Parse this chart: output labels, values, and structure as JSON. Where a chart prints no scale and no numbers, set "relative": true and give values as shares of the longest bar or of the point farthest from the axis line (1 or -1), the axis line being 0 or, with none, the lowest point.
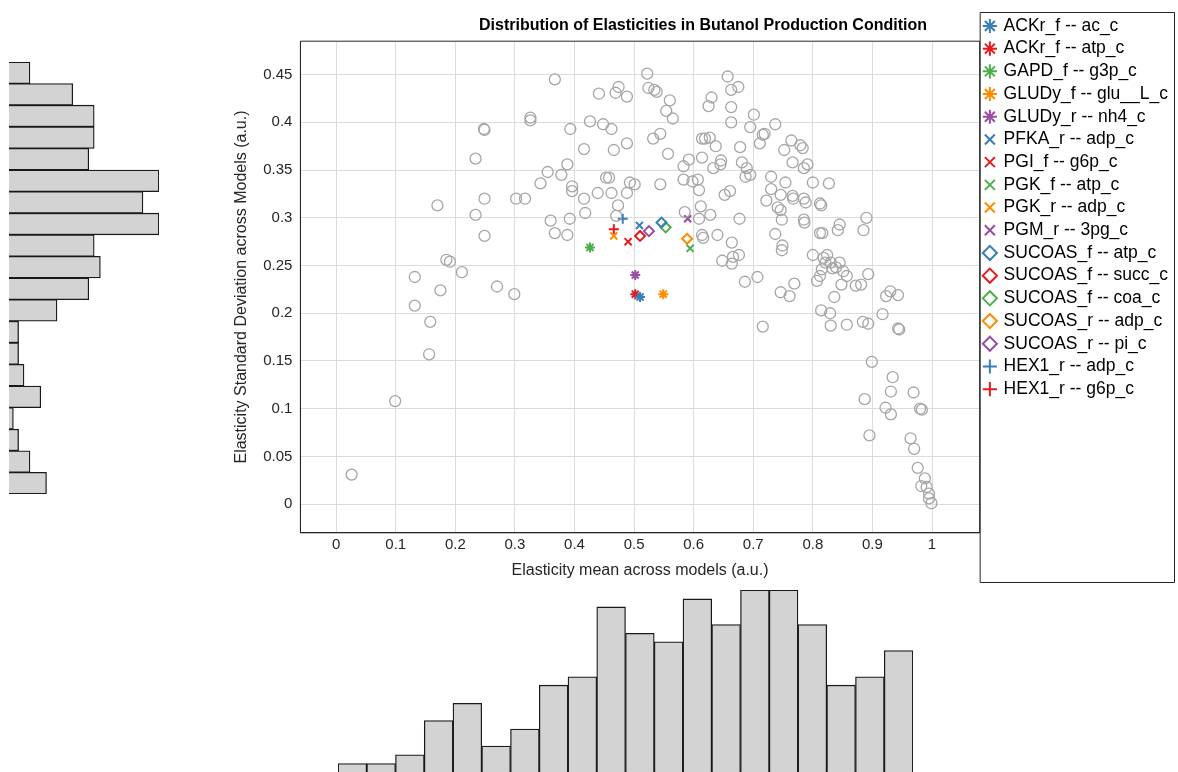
{
  "chart_data": [
    {
      "type": "scatter",
      "title": "Distribution of Elasticities in Butanol Production Condition",
      "xlabel": "Elasticity mean across models (a.u.)",
      "ylabel": "Elasticity Standard Deviation across Models (a.u.)",
      "xlim": [
        -0.06,
        1.08
      ],
      "ylim": [
        -0.03,
        0.485
      ],
      "xticks": [
        0,
        0.1,
        0.2,
        0.3,
        0.4,
        0.5,
        0.6,
        0.7,
        0.8,
        0.9,
        1
      ],
      "yticks": [
        0,
        0.05,
        0.1,
        0.15,
        0.2,
        0.25,
        0.3,
        0.35,
        0.4,
        0.45
      ],
      "grid": true,
      "legend": "top right",
      "series": [
        {
          "color": "#a6a6a6",
          "marker": "circle",
          "x": [
            0.367,
            0.441,
            0.474,
            0.469,
            0.488,
            0.326,
            0.326,
            0.248,
            0.249,
            0.393,
            0.426,
            0.448,
            0.462,
            0.416,
            0.466,
            0.488,
            0.234,
            0.355,
            0.388,
            0.378,
            0.343,
            0.396,
            0.396,
            0.453,
            0.458,
            0.493,
            0.501,
            0.439,
            0.462,
            0.488,
            0.416,
            0.249,
            0.302,
            0.317,
            0.17,
            0.473,
            0.234,
            0.47,
            0.418,
            0.36,
            0.392,
            0.367,
            0.388,
            0.249,
            0.185,
            0.191,
            0.211,
            0.132,
            0.27,
            0.299,
            0.175,
            0.132,
            0.158,
            0.156,
            0.099,
            0.026,
            0.522,
            0.524,
            0.534,
            0.538,
            0.56,
            0.554,
            0.565,
            0.544,
            0.532,
            0.557,
            0.657,
            0.663,
            0.675,
            0.63,
            0.625,
            0.663,
            0.663,
            0.701,
            0.695,
            0.737,
            0.619,
            0.614,
            0.627,
            0.637,
            0.716,
            0.719,
            0.711,
            0.614,
            0.592,
            0.583,
            0.646,
            0.645,
            0.633,
            0.678,
            0.681,
            0.689,
            0.687,
            0.695,
            0.764,
            0.752,
            0.779,
            0.783,
            0.766,
            0.785,
            0.791,
            0.583,
            0.598,
            0.607,
            0.609,
            0.544,
            0.73,
            0.73,
            0.754,
            0.746,
            0.741,
            0.746,
            0.748,
            0.722,
            0.8,
            0.827,
            0.766,
            0.767,
            0.785,
            0.788,
            0.812,
            0.814,
            0.652,
            0.661,
            0.612,
            0.628,
            0.585,
            0.609,
            0.677,
            0.785,
            0.786,
            0.89,
            0.845,
            0.842,
            0.885,
            0.737,
            0.749,
            0.748,
            0.812,
            0.816,
            0.614,
            0.616,
            0.64,
            0.664,
            0.666,
            0.676,
            0.648,
            0.664,
            0.8,
            0.818,
            0.824,
            0.821,
            0.83,
            0.839,
            0.845,
            0.851,
            0.857,
            0.833,
            0.815,
            0.893,
            0.881,
            0.872,
            0.848,
            0.807,
            0.812,
            0.686,
            0.707,
            0.746,
            0.761,
            0.769,
            0.836,
            0.923,
            0.93,
            0.943,
            0.814,
            0.829,
            0.83,
            0.857,
            0.884,
            0.893,
            0.917,
            0.943,
            0.945,
            0.716,
            0.899,
            0.934,
            0.931,
            0.922,
            0.931,
            0.887,
            0.969,
            0.98,
            0.983,
            0.895,
            0.964,
            0.97,
            0.976,
            0.988,
            0.982,
            0.991,
            0.995,
            0.995,
            0.999
          ],
          "values": [
            0.445,
            0.43,
            0.437,
            0.431,
            0.427,
            0.405,
            0.402,
            0.393,
            0.392,
            0.393,
            0.401,
            0.398,
            0.393,
            0.372,
            0.371,
            0.378,
            0.362,
            0.348,
            0.356,
            0.345,
            0.336,
            0.333,
            0.328,
            0.342,
            0.342,
            0.337,
            0.335,
            0.326,
            0.326,
            0.326,
            0.32,
            0.32,
            0.32,
            0.32,
            0.313,
            0.313,
            0.303,
            0.302,
            0.305,
            0.297,
            0.299,
            0.284,
            0.282,
            0.281,
            0.256,
            0.254,
            0.243,
            0.238,
            0.228,
            0.22,
            0.224,
            0.208,
            0.191,
            0.157,
            0.108,
            0.031,
            0.451,
            0.436,
            0.434,
            0.432,
            0.423,
            0.412,
            0.404,
            0.388,
            0.383,
            0.367,
            0.448,
            0.434,
            0.437,
            0.426,
            0.417,
            0.416,
            0.4,
            0.408,
            0.395,
            0.398,
            0.383,
            0.383,
            0.384,
            0.375,
            0.387,
            0.388,
            0.378,
            0.363,
            0.361,
            0.354,
            0.36,
            0.356,
            0.352,
            0.374,
            0.358,
            0.352,
            0.343,
            0.345,
            0.381,
            0.371,
            0.376,
            0.373,
            0.358,
            0.352,
            0.356,
            0.34,
            0.338,
            0.34,
            0.329,
            0.335,
            0.343,
            0.33,
            0.337,
            0.324,
            0.311,
            0.308,
            0.298,
            0.318,
            0.337,
            0.336,
            0.323,
            0.32,
            0.32,
            0.316,
            0.315,
            0.313,
            0.324,
            0.328,
            0.312,
            0.303,
            0.306,
            0.299,
            0.299,
            0.298,
            0.295,
            0.3,
            0.293,
            0.287,
            0.287,
            0.283,
            0.271,
            0.266,
            0.284,
            0.284,
            0.282,
            0.279,
            0.282,
            0.274,
            0.259,
            0.261,
            0.255,
            0.252,
            0.261,
            0.258,
            0.261,
            0.253,
            0.253,
            0.248,
            0.253,
            0.244,
            0.239,
            0.247,
            0.246,
            0.241,
            0.23,
            0.229,
            0.23,
            0.234,
            0.239,
            0.233,
            0.238,
            0.222,
            0.218,
            0.231,
            0.217,
            0.218,
            0.223,
            0.219,
            0.203,
            0.2,
            0.187,
            0.188,
            0.191,
            0.189,
            0.199,
            0.184,
            0.183,
            0.186,
            0.149,
            0.133,
            0.118,
            0.101,
            0.094,
            0.11,
            0.117,
            0.1,
            0.099,
            0.072,
            0.069,
            0.058,
            0.038,
            0.027,
            0.019,
            0.018,
            0.011,
            0.006,
            0.001
          ]
        },
        {
          "name": "ACKr_f -- ac_c",
          "color": "#377eb8",
          "marker": "cross",
          "x": [
            0.51
          ],
          "values": [
            0.217
          ]
        },
        {
          "name": "ACKr_f -- atp_c",
          "color": "#e41a1c",
          "marker": "cross",
          "x": [
            0.502
          ],
          "values": [
            0.22
          ]
        },
        {
          "name": "GAPD_f -- g3p_c",
          "color": "#4daf4a",
          "marker": "cross",
          "x": [
            0.426
          ],
          "values": [
            0.269
          ]
        },
        {
          "name": "GLUDy_f -- glu__L_c",
          "color": "#ff8c00",
          "marker": "cross",
          "x": [
            0.549
          ],
          "values": [
            0.22
          ]
        },
        {
          "name": "GLUDy_r -- nh4_c",
          "color": "#984ea3",
          "marker": "cross",
          "x": [
            0.502
          ],
          "values": [
            0.24
          ]
        },
        {
          "name": "PFKA_r -- adp_c",
          "color": "#377eb8",
          "marker": "x",
          "x": [
            0.509
          ],
          "values": [
            0.292
          ]
        },
        {
          "name": "PGI_f -- g6p_c",
          "color": "#e41a1c",
          "marker": "x",
          "x": [
            0.49
          ],
          "values": [
            0.275
          ]
        },
        {
          "name": "PGK_f -- atp_c",
          "color": "#4daf4a",
          "marker": "x",
          "x": [
            0.594
          ],
          "values": [
            0.268
          ]
        },
        {
          "name": "PGK_r -- adp_c",
          "color": "#ff8c00",
          "marker": "x",
          "x": [
            0.466
          ],
          "values": [
            0.281
          ]
        },
        {
          "name": "PGM_r -- 3pg_c",
          "color": "#984ea3",
          "marker": "x",
          "x": [
            0.59
          ],
          "values": [
            0.299
          ]
        },
        {
          "name": "SUCOAS_f -- atp_c",
          "color": "#377eb8",
          "marker": "diamond",
          "x": [
            0.546
          ],
          "values": [
            0.295
          ]
        },
        {
          "name": "SUCOAS_f -- succ_c",
          "color": "#e41a1c",
          "marker": "diamond",
          "x": [
            0.51
          ],
          "values": [
            0.281
          ]
        },
        {
          "name": "SUCOAS_f -- coa_c",
          "color": "#4daf4a",
          "marker": "diamond",
          "x": [
            0.553
          ],
          "values": [
            0.29
          ]
        },
        {
          "name": "SUCOAS_r -- adp_c",
          "color": "#ff8c00",
          "marker": "diamond",
          "x": [
            0.589
          ],
          "values": [
            0.278
          ]
        },
        {
          "name": "SUCOAS_r -- pi_c",
          "color": "#984ea3",
          "marker": "diamond",
          "x": [
            0.525
          ],
          "values": [
            0.286
          ]
        },
        {
          "name": "HEX1_r -- adp_c",
          "color": "#377eb8",
          "marker": "plus",
          "x": [
            0.481
          ],
          "values": [
            0.299
          ]
        },
        {
          "name": "HEX1_r -- g6p_c",
          "color": "#e41a1c",
          "marker": "plus",
          "x": [
            0.466
          ],
          "values": [
            0.288
          ]
        }
      ]
    },
    {
      "type": "bar",
      "orientation": "horizontal",
      "relative": true,
      "color": "#d3d3d3",
      "categories": [
        null,
        null,
        null,
        null,
        null,
        null,
        null,
        null,
        null,
        null,
        null,
        null,
        null,
        null,
        null,
        null,
        null,
        null,
        null,
        null
      ],
      "values": [
        0.14,
        0.425,
        0.568,
        0.568,
        0.532,
        1,
        0.893,
        1,
        0.568,
        0.609,
        0.532,
        0.32,
        0.064,
        0.064,
        0.1,
        0.212,
        0.029,
        0.064,
        0.14,
        0.25
      ]
    },
    {
      "type": "bar",
      "relative": true,
      "color": "#d3d3d3",
      "categories": [
        null,
        null,
        null,
        null,
        null,
        null,
        null,
        null,
        null,
        null,
        null,
        null,
        null,
        null,
        null,
        null,
        null,
        null,
        null,
        null
      ],
      "values": [
        0.046,
        0.046,
        0.095,
        0.283,
        0.377,
        0.143,
        0.236,
        0.477,
        0.523,
        0.907,
        0.762,
        0.715,
        0.951,
        0.81,
        1,
        1,
        0.81,
        0.477,
        0.523,
        0.667
      ]
    }
  ]
}
